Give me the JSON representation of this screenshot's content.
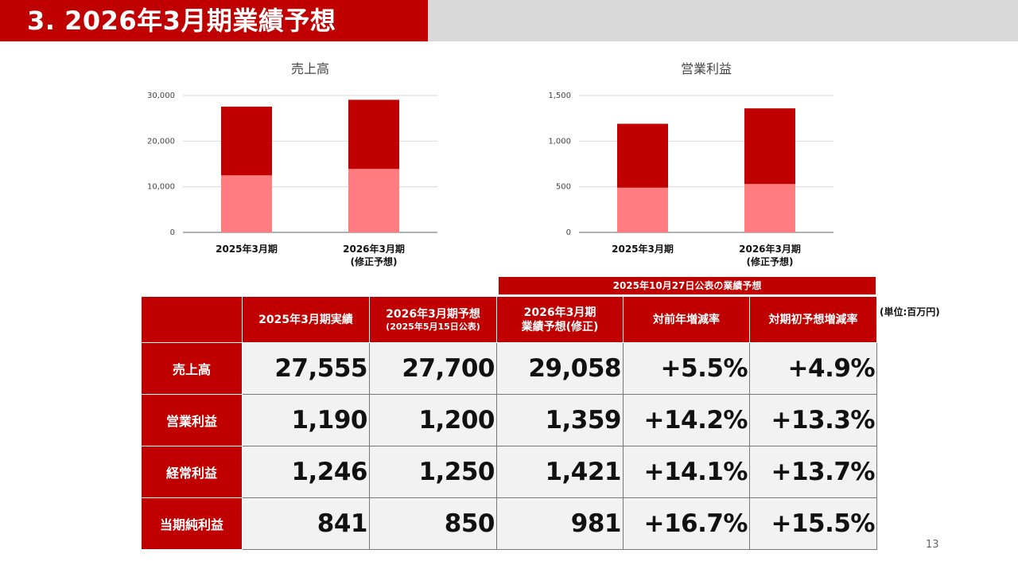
{
  "header": {
    "title": "3. 2026年3月期業績予想"
  },
  "chart_data": [
    {
      "type": "bar",
      "stacked": true,
      "title": "売上高",
      "categories": [
        "2025年3月期",
        "2026年3月期\n(修正予想)"
      ],
      "series": [
        {
          "values": [
            12500,
            13900
          ],
          "color": "#ff7c80"
        },
        {
          "values": [
            15055,
            15158
          ],
          "color": "#c00000"
        }
      ],
      "ylim": [
        0,
        30000
      ],
      "yticks": [
        "0",
        "10,000",
        "20,000",
        "30,000"
      ],
      "grid": true
    },
    {
      "type": "bar",
      "stacked": true,
      "title": "営業利益",
      "categories": [
        "2025年3月期",
        "2026年3月期\n(修正予想)"
      ],
      "series": [
        {
          "values": [
            490,
            530
          ],
          "color": "#ff7c80"
        },
        {
          "values": [
            700,
            829
          ],
          "color": "#c00000"
        }
      ],
      "ylim": [
        0,
        1500
      ],
      "yticks": [
        "0",
        "500",
        "1,000",
        "1,500"
      ],
      "grid": true
    }
  ],
  "table": {
    "banner": "2025年10月27日公表の業績予想",
    "unit": "(単位:百万円)",
    "columns": [
      {
        "main": "2025年3月期実績",
        "sub": ""
      },
      {
        "main": "2026年3月期予想",
        "sub": "(2025年5月15日公表)"
      },
      {
        "main": "2026年3月期",
        "sub2": "業績予想(修正)"
      },
      {
        "main": "対前年増減率",
        "sub": ""
      },
      {
        "main": "対期初予想増減率",
        "sub": ""
      }
    ],
    "rows": [
      {
        "label": "売上高",
        "values": [
          "27,555",
          "27,700",
          "29,058",
          "+5.5%",
          "+4.9%"
        ]
      },
      {
        "label": "営業利益",
        "values": [
          "1,190",
          "1,200",
          "1,359",
          "+14.2%",
          "+13.3%"
        ]
      },
      {
        "label": "経常利益",
        "values": [
          "1,246",
          "1,250",
          "1,421",
          "+14.1%",
          "+13.7%"
        ]
      },
      {
        "label": "当期純利益",
        "values": [
          "841",
          "850",
          "981",
          "+16.7%",
          "+15.5%"
        ]
      }
    ]
  },
  "page_number": "13",
  "colors": {
    "accent": "#c00000",
    "light_bar": "#ff7c80",
    "header_bg": "#d9d9d9"
  }
}
